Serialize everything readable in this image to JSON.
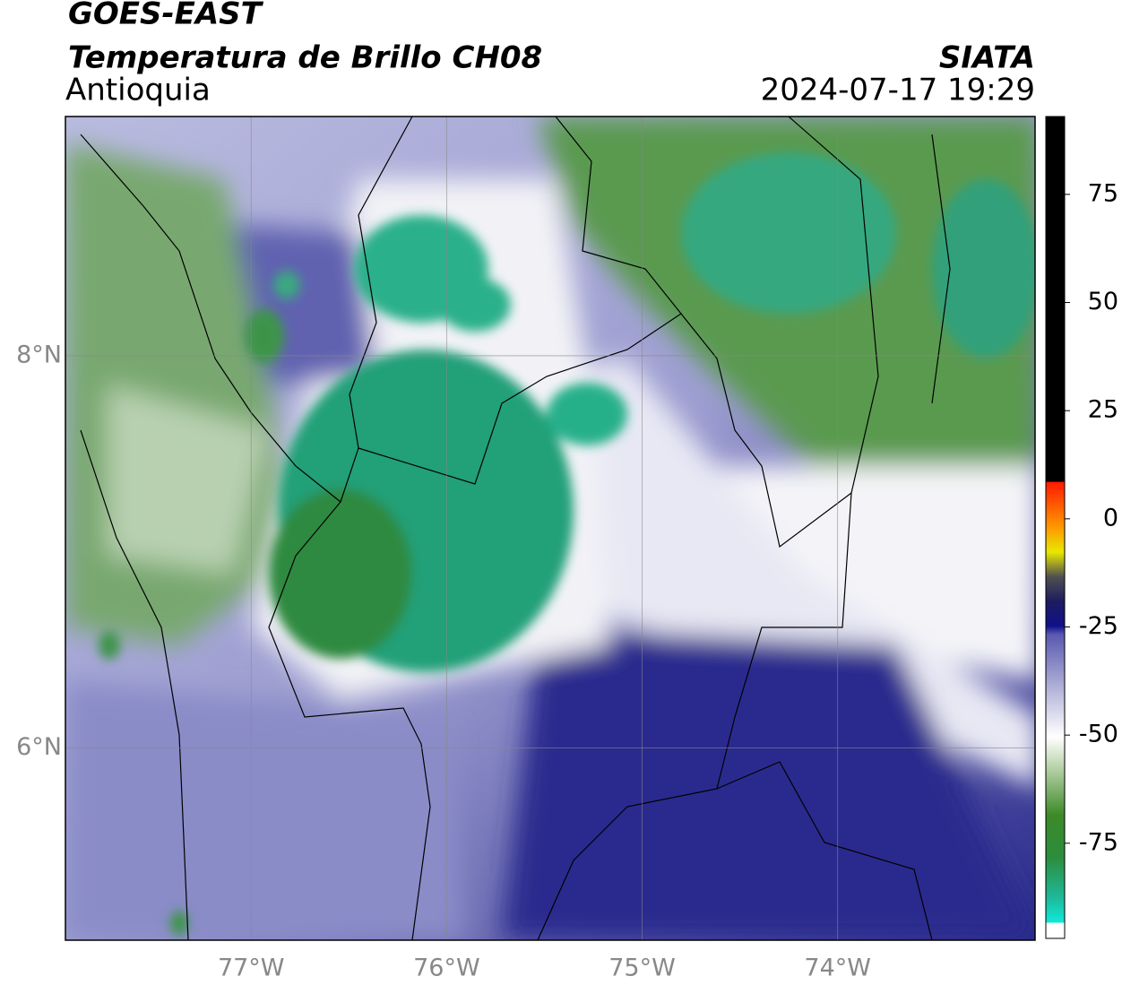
{
  "header": {
    "title": "GOES-EAST",
    "subtitle": "Temperatura de Brillo CH08",
    "region": "Antioquia",
    "source": "SIATA",
    "datetime": "2024-07-17 19:29"
  },
  "map": {
    "xlim": [
      -77.95,
      -72.99
    ],
    "ylim": [
      5.02,
      9.22
    ],
    "xticks": [
      {
        "value": -77,
        "label": "77°W"
      },
      {
        "value": -76,
        "label": "76°W"
      },
      {
        "value": -75,
        "label": "75°W"
      },
      {
        "value": -74,
        "label": "74°W"
      }
    ],
    "yticks": [
      {
        "value": 6,
        "label": "6°N"
      },
      {
        "value": 8,
        "label": "8°N"
      }
    ],
    "grid": true
  },
  "colorbar": {
    "lim": [
      -97,
      93
    ],
    "ticks": [
      -75,
      -50,
      -25,
      0,
      25,
      50,
      75
    ]
  }
}
